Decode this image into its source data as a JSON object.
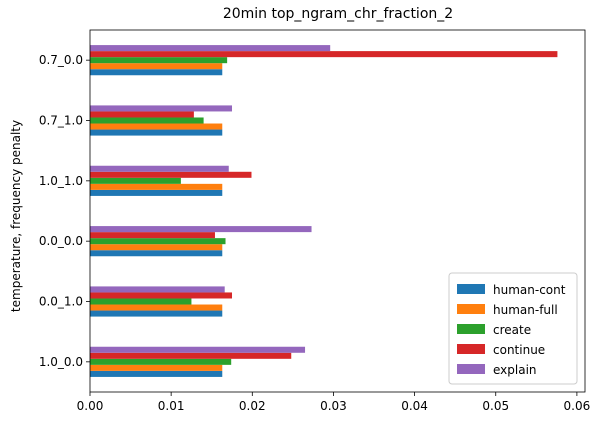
{
  "chart_data": {
    "type": "bar",
    "orientation": "horizontal",
    "title": "20min top_ngram_chr_fraction_2",
    "xlabel": "",
    "ylabel": "temperature, frequency penalty",
    "xlim": [
      0.0,
      0.061
    ],
    "x_ticks": [
      "0.00",
      "0.01",
      "0.02",
      "0.03",
      "0.04",
      "0.05",
      "0.06"
    ],
    "x_tick_values": [
      0,
      0.01,
      0.02,
      0.03,
      0.04,
      0.05,
      0.06
    ],
    "categories": [
      "1.0_0.0",
      "0.0_1.0",
      "0.0_0.0",
      "1.0_1.0",
      "0.7_1.0",
      "0.7_0.0"
    ],
    "grid": false,
    "legend_position": "lower right",
    "series": [
      {
        "name": "human-cont",
        "color": "#1f77b4",
        "values": [
          0.0163,
          0.0163,
          0.0163,
          0.0163,
          0.0163,
          0.0163
        ]
      },
      {
        "name": "human-full",
        "color": "#ff7f0e",
        "values": [
          0.0163,
          0.0163,
          0.0163,
          0.0163,
          0.0163,
          0.0163
        ]
      },
      {
        "name": "create",
        "color": "#2ca02c",
        "values": [
          0.0174,
          0.0125,
          0.0167,
          0.0112,
          0.014,
          0.0169
        ]
      },
      {
        "name": "continue",
        "color": "#d62728",
        "values": [
          0.0248,
          0.0175,
          0.0154,
          0.0199,
          0.0128,
          0.0576
        ]
      },
      {
        "name": "explain",
        "color": "#9467bd",
        "values": [
          0.0265,
          0.0166,
          0.0273,
          0.0171,
          0.0175,
          0.0296
        ]
      }
    ]
  }
}
